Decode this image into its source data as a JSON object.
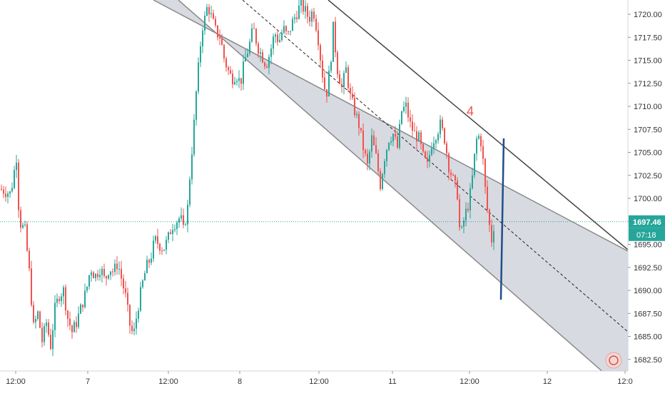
{
  "chart_data": {
    "type": "candlestick",
    "symbol_unit": "price",
    "ylim": [
      1680.0,
      1722.0
    ],
    "y_ticks": [
      "1682.50",
      "1685.00",
      "1687.50",
      "1690.00",
      "1692.50",
      "1695.00",
      "1697.50",
      "1700.00",
      "1702.50",
      "1705.00",
      "1707.50",
      "1710.00",
      "1712.50",
      "1715.00",
      "1717.50",
      "1720.00"
    ],
    "x_ticks": [
      "12:00",
      "7",
      "12:00",
      "8",
      "12:00",
      "11",
      "12:00",
      "12",
      "12:0"
    ],
    "current_price": "1697.46",
    "countdown": "07:18",
    "annotation": "4",
    "grid": false,
    "colors": {
      "up": "#26a69a",
      "down": "#ef5350",
      "channel_fill": "#d1d4dc",
      "channel_line": "#555555",
      "price_line": "#26a69a",
      "marker_line": "#1f4e8c",
      "annotation": "#ef5350"
    },
    "path_points": [
      [
        0,
        1701.0
      ],
      [
        14,
        1700.5
      ],
      [
        22,
        1704.5
      ],
      [
        26,
        1697.5
      ],
      [
        34,
        1696.5
      ],
      [
        40,
        1692.0
      ],
      [
        46,
        1686.0
      ],
      [
        52,
        1687.5
      ],
      [
        58,
        1684.5
      ],
      [
        64,
        1686.5
      ],
      [
        70,
        1684.0
      ],
      [
        76,
        1688.0
      ],
      [
        82,
        1689.5
      ],
      [
        88,
        1690.0
      ],
      [
        94,
        1687.0
      ],
      [
        100,
        1685.5
      ],
      [
        106,
        1686.5
      ],
      [
        114,
        1688.5
      ],
      [
        120,
        1690.0
      ],
      [
        126,
        1692.5
      ],
      [
        132,
        1691.5
      ],
      [
        140,
        1692.5
      ],
      [
        146,
        1691.0
      ],
      [
        152,
        1692.5
      ],
      [
        158,
        1692.0
      ],
      [
        164,
        1693.0
      ],
      [
        170,
        1691.0
      ],
      [
        176,
        1689.0
      ],
      [
        180,
        1686.5
      ],
      [
        186,
        1685.0
      ],
      [
        192,
        1688.0
      ],
      [
        198,
        1690.5
      ],
      [
        204,
        1692.5
      ],
      [
        210,
        1693.5
      ],
      [
        216,
        1695.5
      ],
      [
        222,
        1695.0
      ],
      [
        228,
        1694.5
      ],
      [
        234,
        1695.5
      ],
      [
        240,
        1697.0
      ],
      [
        246,
        1697.5
      ],
      [
        252,
        1698.0
      ],
      [
        256,
        1696.5
      ],
      [
        262,
        1699.0
      ],
      [
        266,
        1703.5
      ],
      [
        270,
        1707.0
      ],
      [
        274,
        1711.5
      ],
      [
        278,
        1715.0
      ],
      [
        282,
        1718.5
      ],
      [
        286,
        1719.5
      ],
      [
        290,
        1721.0
      ],
      [
        296,
        1719.5
      ],
      [
        302,
        1718.0
      ],
      [
        308,
        1717.5
      ],
      [
        312,
        1715.5
      ],
      [
        318,
        1714.0
      ],
      [
        324,
        1713.0
      ],
      [
        330,
        1713.5
      ],
      [
        336,
        1712.5
      ],
      [
        342,
        1715.0
      ],
      [
        348,
        1716.5
      ],
      [
        354,
        1718.5
      ],
      [
        360,
        1716.5
      ],
      [
        366,
        1715.5
      ],
      [
        372,
        1714.5
      ],
      [
        378,
        1716.0
      ],
      [
        384,
        1718.0
      ],
      [
        390,
        1717.0
      ],
      [
        396,
        1718.5
      ],
      [
        402,
        1717.5
      ],
      [
        408,
        1719.0
      ],
      [
        414,
        1720.0
      ],
      [
        420,
        1721.0
      ],
      [
        426,
        1720.5
      ],
      [
        432,
        1719.5
      ],
      [
        438,
        1720.5
      ],
      [
        444,
        1718.0
      ],
      [
        450,
        1714.0
      ],
      [
        456,
        1711.0
      ],
      [
        462,
        1714.5
      ],
      [
        466,
        1718.5
      ],
      [
        472,
        1714.0
      ],
      [
        478,
        1712.0
      ],
      [
        484,
        1714.0
      ],
      [
        490,
        1711.0
      ],
      [
        496,
        1709.5
      ],
      [
        502,
        1708.0
      ],
      [
        508,
        1705.5
      ],
      [
        514,
        1703.5
      ],
      [
        520,
        1706.5
      ],
      [
        526,
        1704.5
      ],
      [
        532,
        1701.5
      ],
      [
        538,
        1704.5
      ],
      [
        544,
        1706.5
      ],
      [
        550,
        1707.0
      ],
      [
        556,
        1705.5
      ],
      [
        562,
        1709.5
      ],
      [
        568,
        1710.0
      ],
      [
        574,
        1708.0
      ],
      [
        580,
        1707.0
      ],
      [
        586,
        1706.5
      ],
      [
        592,
        1704.5
      ],
      [
        598,
        1703.5
      ],
      [
        604,
        1706.0
      ],
      [
        610,
        1707.0
      ],
      [
        616,
        1708.0
      ],
      [
        622,
        1706.5
      ],
      [
        628,
        1703.5
      ],
      [
        634,
        1702.0
      ],
      [
        640,
        1700.5
      ],
      [
        644,
        1695.5
      ],
      [
        650,
        1698.0
      ],
      [
        656,
        1699.5
      ],
      [
        660,
        1701.5
      ],
      [
        664,
        1704.5
      ],
      [
        668,
        1707.0
      ],
      [
        674,
        1706.0
      ],
      [
        680,
        1700.0
      ],
      [
        684,
        1697.5
      ],
      [
        688,
        1695.5
      ],
      [
        692,
        1697.5
      ]
    ]
  }
}
